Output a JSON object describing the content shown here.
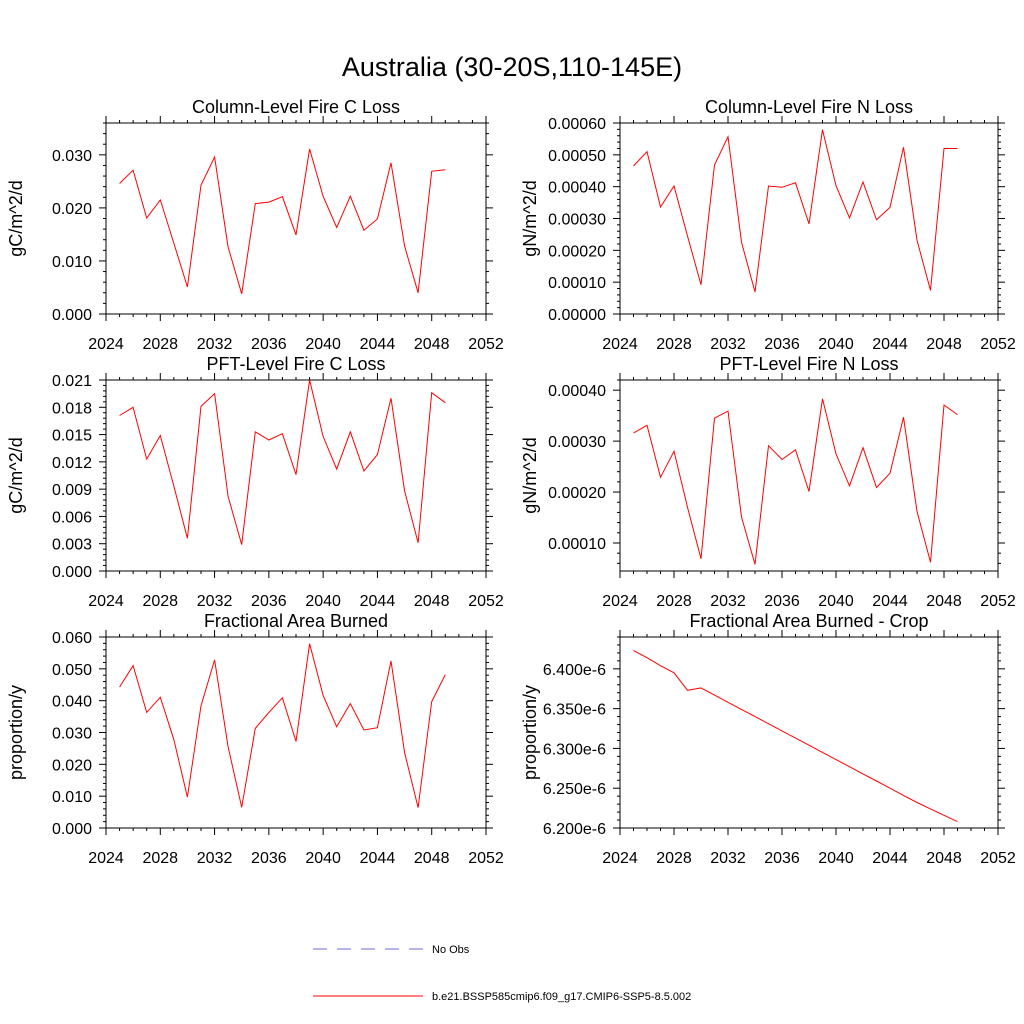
{
  "figure": {
    "title": "Australia (30-20S,110-145E)",
    "line_color": "#ff0000",
    "obs_color": "#6b6bd6",
    "axis_color": "#000000"
  },
  "legend": {
    "obs_label": "No Obs",
    "model_label": "b.e21.BSSP585cmip6.f09_g17.CMIP6-SSP5-8.5.002"
  },
  "chart_data": [
    {
      "type": "line",
      "title": "Column-Level Fire C Loss",
      "xlabel": "",
      "ylabel": "gC/m^2/d",
      "xlim": [
        2024,
        2052
      ],
      "ylim": [
        0,
        0.036
      ],
      "xticks": [
        2024,
        2028,
        2032,
        2036,
        2040,
        2044,
        2048,
        2052
      ],
      "xtick_labels": [
        "2024",
        "2028",
        "2032",
        "2036",
        "2040",
        "2044",
        "2048",
        "2052"
      ],
      "yticks": [
        0,
        0.01,
        0.02,
        0.03
      ],
      "ytick_labels": [
        "0.000",
        "0.010",
        "0.020",
        "0.030"
      ],
      "x": [
        2025,
        2026,
        2027,
        2028,
        2029,
        2030,
        2031,
        2032,
        2033,
        2034,
        2035,
        2036,
        2037,
        2038,
        2039,
        2040,
        2041,
        2042,
        2043,
        2044,
        2045,
        2046,
        2047,
        2048,
        2049
      ],
      "values": [
        0.0246,
        0.0271,
        0.0181,
        0.0215,
        0.0133,
        0.0051,
        0.0243,
        0.0296,
        0.0126,
        0.0038,
        0.0208,
        0.0211,
        0.0221,
        0.0149,
        0.0311,
        0.0222,
        0.0163,
        0.0222,
        0.0158,
        0.0179,
        0.0285,
        0.0128,
        0.004,
        0.0269,
        0.0272
      ]
    },
    {
      "type": "line",
      "title": "Column-Level Fire N Loss",
      "xlabel": "",
      "ylabel": "gN/m^2/d",
      "xlim": [
        2024,
        2052
      ],
      "ylim": [
        0,
        0.0006
      ],
      "xticks": [
        2024,
        2028,
        2032,
        2036,
        2040,
        2044,
        2048,
        2052
      ],
      "xtick_labels": [
        "2024",
        "2028",
        "2032",
        "2036",
        "2040",
        "2044",
        "2048",
        "2052"
      ],
      "yticks": [
        0,
        0.0001,
        0.0002,
        0.0003,
        0.0004,
        0.0005,
        0.0006
      ],
      "ytick_labels": [
        "0.00000",
        "0.00010",
        "0.00020",
        "0.00030",
        "0.00040",
        "0.00050",
        "0.00060"
      ],
      "x": [
        2025,
        2026,
        2027,
        2028,
        2029,
        2030,
        2031,
        2032,
        2033,
        2034,
        2035,
        2036,
        2037,
        2038,
        2039,
        2040,
        2041,
        2042,
        2043,
        2044,
        2045,
        2046,
        2047,
        2048,
        2049
      ],
      "values": [
        0.000465,
        0.00051,
        0.000336,
        0.000402,
        0.000245,
        9.2e-05,
        0.000468,
        0.000557,
        0.000226,
        6.9e-05,
        0.000402,
        0.000398,
        0.000412,
        0.000283,
        0.000579,
        0.000403,
        0.000302,
        0.000415,
        0.000296,
        0.000335,
        0.000524,
        0.000232,
        7.4e-05,
        0.00052,
        0.00052
      ]
    },
    {
      "type": "line",
      "title": "PFT-Level Fire C Loss",
      "xlabel": "",
      "ylabel": "gC/m^2/d",
      "xlim": [
        2024,
        2052
      ],
      "ylim": [
        0,
        0.021
      ],
      "xticks": [
        2024,
        2028,
        2032,
        2036,
        2040,
        2044,
        2048,
        2052
      ],
      "xtick_labels": [
        "2024",
        "2028",
        "2032",
        "2036",
        "2040",
        "2044",
        "2048",
        "2052"
      ],
      "yticks": [
        0,
        0.003,
        0.006,
        0.009,
        0.012,
        0.015,
        0.018,
        0.021
      ],
      "ytick_labels": [
        "0.000",
        "0.003",
        "0.006",
        "0.009",
        "0.012",
        "0.015",
        "0.018",
        "0.021"
      ],
      "x": [
        2025,
        2026,
        2027,
        2028,
        2029,
        2030,
        2031,
        2032,
        2033,
        2034,
        2035,
        2036,
        2037,
        2038,
        2039,
        2040,
        2041,
        2042,
        2043,
        2044,
        2045,
        2046,
        2047,
        2048,
        2049
      ],
      "values": [
        0.0171,
        0.018,
        0.0123,
        0.0149,
        0.0093,
        0.0036,
        0.0181,
        0.0195,
        0.0082,
        0.0029,
        0.0153,
        0.0144,
        0.0151,
        0.0106,
        0.021,
        0.0148,
        0.0112,
        0.0153,
        0.011,
        0.0128,
        0.019,
        0.0088,
        0.0031,
        0.0196,
        0.0185
      ]
    },
    {
      "type": "line",
      "title": "PFT-Level Fire N Loss",
      "xlabel": "",
      "ylabel": "gN/m^2/d",
      "xlim": [
        2024,
        2052
      ],
      "ylim": [
        4.5e-05,
        0.00042
      ],
      "xticks": [
        2024,
        2028,
        2032,
        2036,
        2040,
        2044,
        2048,
        2052
      ],
      "xtick_labels": [
        "2024",
        "2028",
        "2032",
        "2036",
        "2040",
        "2044",
        "2048",
        "2052"
      ],
      "yticks": [
        0.0001,
        0.0002,
        0.0003,
        0.0004
      ],
      "ytick_labels": [
        "0.00010",
        "0.00020",
        "0.00030",
        "0.00040"
      ],
      "x": [
        2025,
        2026,
        2027,
        2028,
        2029,
        2030,
        2031,
        2032,
        2033,
        2034,
        2035,
        2036,
        2037,
        2038,
        2039,
        2040,
        2041,
        2042,
        2043,
        2044,
        2045,
        2046,
        2047,
        2048,
        2049
      ],
      "values": [
        0.000316,
        0.000331,
        0.000229,
        0.00028,
        0.00017,
        6.9e-05,
        0.000345,
        0.000359,
        0.000151,
        5.8e-05,
        0.000291,
        0.000264,
        0.000283,
        0.000201,
        0.000383,
        0.000275,
        0.000212,
        0.000287,
        0.000209,
        0.000237,
        0.000347,
        0.000162,
        6.2e-05,
        0.000371,
        0.000352
      ]
    },
    {
      "type": "line",
      "title": "Fractional Area Burned",
      "xlabel": "",
      "ylabel": "proportion/y",
      "xlim": [
        2024,
        2052
      ],
      "ylim": [
        0,
        0.06
      ],
      "xticks": [
        2024,
        2028,
        2032,
        2036,
        2040,
        2044,
        2048,
        2052
      ],
      "xtick_labels": [
        "2024",
        "2028",
        "2032",
        "2036",
        "2040",
        "2044",
        "2048",
        "2052"
      ],
      "yticks": [
        0,
        0.01,
        0.02,
        0.03,
        0.04,
        0.05,
        0.06
      ],
      "ytick_labels": [
        "0.000",
        "0.010",
        "0.020",
        "0.030",
        "0.040",
        "0.050",
        "0.060"
      ],
      "x": [
        2025,
        2026,
        2027,
        2028,
        2029,
        2030,
        2031,
        2032,
        2033,
        2034,
        2035,
        2036,
        2037,
        2038,
        2039,
        2040,
        2041,
        2042,
        2043,
        2044,
        2045,
        2046,
        2047,
        2048,
        2049
      ],
      "values": [
        0.0443,
        0.051,
        0.0363,
        0.0411,
        0.0277,
        0.0097,
        0.0384,
        0.0528,
        0.0255,
        0.0065,
        0.0313,
        0.0363,
        0.0409,
        0.0272,
        0.0579,
        0.0417,
        0.0318,
        0.0391,
        0.0308,
        0.0315,
        0.0525,
        0.0237,
        0.0064,
        0.0397,
        0.0482
      ]
    },
    {
      "type": "line",
      "title": "Fractional Area Burned - Crop",
      "xlabel": "",
      "ylabel": "proportion/y",
      "xlim": [
        2024,
        2052
      ],
      "ylim": [
        6.2e-06,
        6.44e-06
      ],
      "xticks": [
        2024,
        2028,
        2032,
        2036,
        2040,
        2044,
        2048,
        2052
      ],
      "xtick_labels": [
        "2024",
        "2028",
        "2032",
        "2036",
        "2040",
        "2044",
        "2048",
        "2052"
      ],
      "yticks": [
        6.2e-06,
        6.25e-06,
        6.3e-06,
        6.35e-06,
        6.4e-06
      ],
      "ytick_labels": [
        "6.200e-6",
        "6.250e-6",
        "6.300e-6",
        "6.350e-6",
        "6.400e-6"
      ],
      "x": [
        2025,
        2026,
        2027,
        2028,
        2029,
        2030,
        2031,
        2032,
        2033,
        2034,
        2035,
        2036,
        2037,
        2038,
        2039,
        2040,
        2041,
        2042,
        2043,
        2044,
        2045,
        2046,
        2047,
        2048,
        2049
      ],
      "values": [
        6.423e-06,
        6.414e-06,
        6.404e-06,
        6.395e-06,
        6.373e-06,
        6.376e-06,
        6.367e-06,
        6.358e-06,
        6.349e-06,
        6.34e-06,
        6.331e-06,
        6.322e-06,
        6.313e-06,
        6.304e-06,
        6.295e-06,
        6.286e-06,
        6.277e-06,
        6.268e-06,
        6.259e-06,
        6.25e-06,
        6.241e-06,
        6.232e-06,
        6.224e-06,
        6.216e-06,
        6.208e-06
      ]
    }
  ]
}
